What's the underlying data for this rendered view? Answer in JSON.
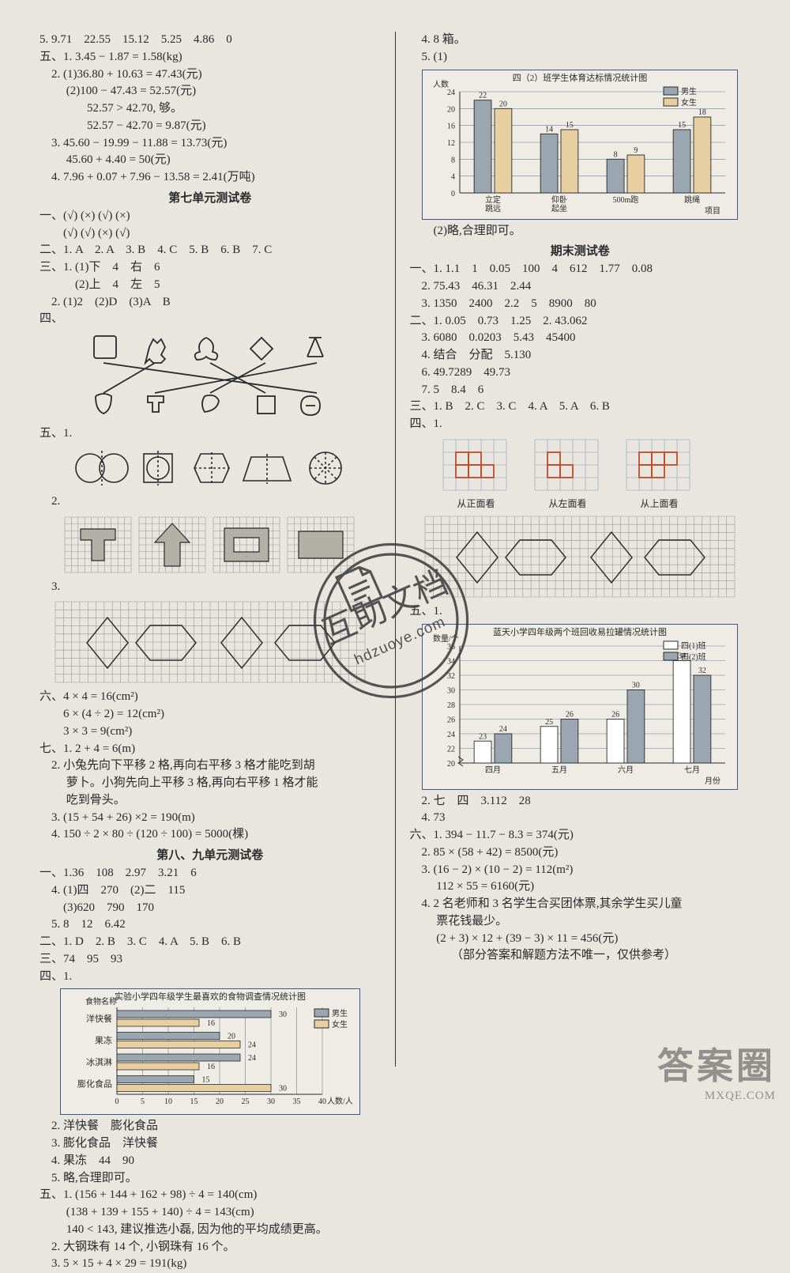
{
  "left": {
    "lines1": [
      "5. 9.71　22.55　15.12　5.25　4.86　0",
      "五、1. 3.45 − 1.87 = 1.58(kg)",
      "　2. (1)36.80 + 10.63 = 47.43(元)",
      "　　 (2)100 − 47.43 = 52.57(元)",
      "　　　　52.57 > 42.70, 够。",
      "　　　　52.57 − 42.70 = 9.87(元)",
      "　3. 45.60 − 19.99 − 11.88 = 13.73(元)",
      "　　 45.60 + 4.40 = 50(元)",
      "　4. 7.96 + 0.07 + 7.96 − 13.58 = 2.41(万吨)"
    ],
    "unit7_title": "第七单元测试卷",
    "lines2": [
      "一、(√) (×) (√) (×)",
      "　　(√) (√) (×) (√)",
      "二、1. A　2. A　3. B　4. C　5. B　6. B　7. C",
      "三、1. (1)下　4　右　6",
      "　　　(2)上　4　左　5",
      "　2. (1)2　(2)D　(3)A　B",
      "四、"
    ],
    "lines_51": "五、1.",
    "lines_52": "　2.",
    "lines_53": "　3.",
    "lines6": [
      "六、4 × 4 = 16(cm²)",
      "　　6 × (4 ÷ 2) = 12(cm²)",
      "　　3 × 3 = 9(cm²)",
      "七、1. 2 + 4 = 6(m)",
      "　2. 小兔先向下平移 2 格,再向右平移 3 格才能吃到胡",
      "　　 萝卜。小狗先向上平移 3 格,再向右平移 1 格才能",
      "　　 吃到骨头。",
      "　3. (15 + 54 + 26) ×2 = 190(m)",
      "　4. 150 ÷ 2 × 80 ÷ (120 ÷ 100) = 5000(棵)"
    ],
    "unit89_title": "第八、九单元测试卷",
    "lines7": [
      "一、1.36　108　2.97　3.21　6",
      "　4. (1)四　270　(2)二　115",
      "　　(3)620　790　170",
      "　5. 8　12　6.42",
      "二、1. D　2. B　3. C　4. A　5. B　6. B",
      "三、74　95　93",
      "四、1."
    ],
    "food_chart": {
      "title": "实验小学四年级学生最喜欢的食物调查情况统计图",
      "axis_label": "食物名称",
      "x_label": "人数/人",
      "legend": [
        "男生",
        "女生"
      ],
      "legend_colors": [
        "#9aa7b1",
        "#e7cfa2"
      ],
      "categories": [
        "洋快餐",
        "果冻",
        "冰淇淋",
        "膨化食品"
      ],
      "boys": [
        30,
        20,
        24,
        15
      ],
      "girls": [
        16,
        24,
        16,
        30
      ],
      "xmax": 40,
      "xticks": [
        0,
        5,
        10,
        15,
        20,
        25,
        30,
        35,
        40
      ],
      "bg": "#efece5",
      "border": "#3a5a8a",
      "grid": "#6b7f9a"
    },
    "lines8": [
      "　2. 洋快餐　膨化食品",
      "　3. 膨化食品　洋快餐",
      "　4. 果冻　44　90",
      "　5. 略,合理即可。",
      "五、1. (156 + 144 + 162 + 98) ÷ 4 = 140(cm)",
      "　　 (138 + 139 + 155 + 140) ÷ 4 = 143(cm)",
      "　　 140 < 143, 建议推选小磊, 因为他的平均成绩更高。",
      "　2. 大钢珠有 14 个, 小钢珠有 16 个。",
      "　3. 5 × 15 + 4 × 29 = 191(kg)"
    ]
  },
  "right": {
    "lines1": [
      "　4. 8 箱。",
      "　5. (1)"
    ],
    "pe_chart": {
      "title": "四（2）班学生体育达标情况统计图",
      "y_label": "人数",
      "x_label": "项目",
      "legend": [
        "男生",
        "女生"
      ],
      "legend_colors": [
        "#9aa7b1",
        "#e7cfa2"
      ],
      "categories": [
        "立定\\n跳远",
        "仰卧\\n起坐",
        "500m跑",
        "跳绳"
      ],
      "boys": [
        22,
        14,
        8,
        15
      ],
      "girls": [
        20,
        15,
        9,
        18
      ],
      "ymax": 24,
      "yticks": [
        0,
        4,
        8,
        12,
        16,
        20,
        24
      ],
      "bg": "#efece5",
      "border": "#3a5a8a",
      "grid": "#6b7f9a"
    },
    "lines2": [
      "　　(2)略,合理即可。",
      ""
    ],
    "final_title": "期末测试卷",
    "lines3": [
      "一、1. 1.1　1　0.05　100　4　612　1.77　0.08",
      "　2. 75.43　46.31　2.44",
      "　3. 1350　2400　2.2　5　8900　80",
      "二、1. 0.05　0.73　1.25　2. 43.062",
      "　3. 6080　0.0203　5.43　45400",
      "　4. 结合　分配　5.130",
      "　6. 49.7289　49.73",
      "　7. 5　8.4　6",
      "三、1. B　2. C　3. C　4. A　5. A　6. B",
      "四、1."
    ],
    "views": {
      "labels": [
        "从正面看",
        "从左面看",
        "从上面看"
      ]
    },
    "lines_51": "五、1.",
    "recycling_chart": {
      "title": "蓝天小学四年级两个班回收易拉罐情况统计图",
      "y_label": "数量/个",
      "x_label": "月份",
      "legend": [
        "四(1)班",
        "四(2)班"
      ],
      "legend_colors": [
        "#ffffff",
        "#9aa7b1"
      ],
      "categories": [
        "四月",
        "五月",
        "六月",
        "七月"
      ],
      "c1": [
        23,
        25,
        26,
        34
      ],
      "c2": [
        24,
        26,
        30,
        32
      ],
      "ymin": 20,
      "ymax": 36,
      "yticks": [
        20,
        22,
        24,
        26,
        28,
        30,
        32,
        34,
        36
      ],
      "show_break": true,
      "bg": "#efece5",
      "border": "#3a5a8a",
      "grid": "#6b7f9a"
    },
    "lines4": [
      "　2. 七　四　3.112　28",
      "　4. 73",
      "六、1. 394 − 11.7 − 8.3 = 374(元)",
      "　2. 85 × (58 + 42) = 8500(元)",
      "　3. (16 − 2) × (10 − 2) = 112(m²)",
      "　　 112 × 55 = 6160(元)",
      "　4. 2 名老师和 3 名学生合买团体票,其余学生买儿童",
      "　　 票花钱最少。",
      "　　 (2 + 3) × 12 + (39 − 3) × 11 = 456(元)",
      "　　　　（部分答案和解题方法不唯一，仅供参考）"
    ]
  },
  "seal": {
    "top_text": "互助文档",
    "bottom_text": "hdzuoye.com",
    "circle_color": "#3a3a3a"
  },
  "brand": {
    "text": "答案圈",
    "url": "MXQE.COM"
  },
  "colors": {
    "page_bg": "#e8e6df",
    "stroke": "#2a2a2a",
    "chart_border": "#3a5a8a",
    "chart_grid": "#6b7f9a"
  }
}
